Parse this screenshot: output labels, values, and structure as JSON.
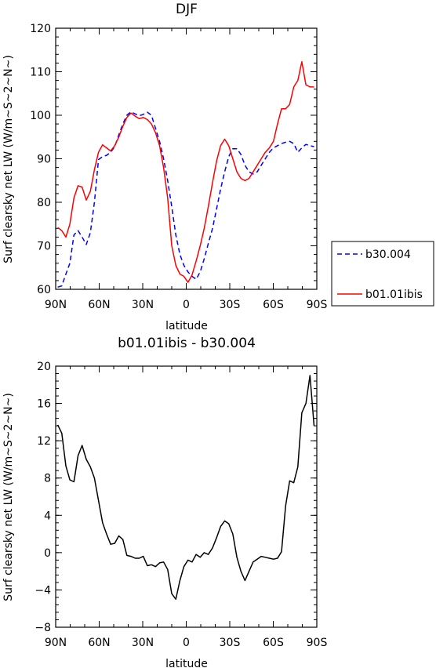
{
  "chart_data": [
    {
      "type": "line",
      "title": "DJF",
      "xlabel": "latitude",
      "ylabel": "Surf clearsky net LW (W/m~S~2~N~)",
      "xlim": [
        90,
        -90
      ],
      "ylim": [
        60,
        120
      ],
      "x_ticks": [
        90,
        60,
        30,
        0,
        -30,
        -60,
        -90
      ],
      "x_tick_labels": [
        "90N",
        "60N",
        "30N",
        "0",
        "30S",
        "60S",
        "90S"
      ],
      "y_ticks": [
        60,
        70,
        80,
        90,
        100,
        110,
        120
      ],
      "y_tick_labels": [
        "60",
        "70",
        "80",
        "90",
        "100",
        "110",
        "120"
      ],
      "legend_position": "outside-right",
      "x": [
        88.6,
        85.8,
        83.0,
        80.2,
        77.4,
        74.6,
        71.8,
        68.9,
        66.1,
        63.3,
        60.5,
        57.7,
        54.9,
        52.1,
        49.3,
        46.5,
        43.7,
        40.9,
        38.1,
        35.2,
        32.4,
        29.6,
        26.8,
        24.0,
        21.2,
        18.4,
        15.6,
        12.8,
        10.0,
        7.2,
        4.4,
        1.6,
        -1.2,
        -4.0,
        -6.8,
        -9.6,
        -12.4,
        -15.2,
        -18.1,
        -20.9,
        -23.7,
        -26.5,
        -29.3,
        -32.1,
        -34.9,
        -37.7,
        -40.5,
        -43.3,
        -46.1,
        -48.9,
        -51.7,
        -54.5,
        -57.3,
        -60.1,
        -62.9,
        -65.7,
        -68.5,
        -71.3,
        -74.1,
        -76.9,
        -79.7,
        -82.5,
        -85.3,
        -88.1
      ],
      "series": [
        {
          "name": "b30.004",
          "color": "#0000ff",
          "dash": "dashed",
          "values": [
            60.5,
            60.8,
            63.5,
            66.0,
            72.5,
            73.5,
            72.0,
            70.3,
            73.0,
            80.0,
            89.8,
            90.5,
            90.8,
            91.5,
            92.8,
            95.5,
            98.0,
            100.0,
            100.8,
            100.3,
            99.9,
            100.2,
            100.7,
            100.0,
            97.0,
            94.0,
            90.0,
            85.0,
            79.0,
            72.5,
            68.0,
            65.5,
            64.0,
            63.0,
            62.3,
            64.0,
            67.0,
            70.5,
            74.0,
            78.5,
            83.0,
            87.0,
            90.5,
            92.3,
            92.3,
            91.0,
            88.5,
            87.0,
            86.5,
            87.0,
            88.5,
            90.0,
            91.5,
            92.5,
            93.0,
            93.5,
            93.8,
            94.0,
            93.5,
            91.5,
            92.5,
            93.3,
            93.0,
            92.8
          ]
        },
        {
          "name": "b01.01ibis",
          "color": "#ff0000",
          "dash": "solid",
          "values": [
            74.2,
            73.5,
            72.0,
            75.0,
            81.0,
            83.8,
            83.5,
            80.5,
            82.5,
            87.5,
            91.5,
            93.2,
            92.5,
            91.8,
            93.0,
            95.0,
            97.5,
            99.5,
            100.5,
            99.8,
            99.2,
            99.5,
            99.0,
            98.0,
            96.0,
            93.0,
            88.0,
            81.0,
            70.0,
            65.5,
            63.5,
            63.0,
            61.6,
            63.3,
            66.5,
            70.0,
            74.0,
            79.0,
            84.5,
            89.5,
            93.0,
            94.5,
            93.0,
            90.0,
            87.0,
            85.5,
            85.0,
            85.5,
            87.0,
            88.5,
            90.0,
            91.5,
            92.5,
            94.0,
            98.0,
            101.5,
            101.5,
            102.5,
            106.5,
            108.0,
            112.3,
            107.0,
            106.5,
            106.5
          ]
        }
      ]
    },
    {
      "type": "line",
      "title": "b01.01ibis - b30.004",
      "xlabel": "latitude",
      "ylabel": "Surf clearsky net LW (W/m~S~2~N~)",
      "xlim": [
        90,
        -90
      ],
      "ylim": [
        -8,
        20
      ],
      "x_ticks": [
        90,
        60,
        30,
        0,
        -30,
        -60,
        -90
      ],
      "x_tick_labels": [
        "90N",
        "60N",
        "30N",
        "0",
        "30S",
        "60S",
        "90S"
      ],
      "y_ticks": [
        -8,
        -4,
        0,
        4,
        8,
        12,
        16,
        20
      ],
      "y_tick_labels": [
        "−8",
        "−4",
        "0",
        "4",
        "8",
        "12",
        "16",
        "20"
      ],
      "x": [
        88.6,
        85.8,
        83.0,
        80.2,
        77.4,
        74.6,
        71.8,
        68.9,
        66.1,
        63.3,
        60.5,
        57.7,
        54.9,
        52.1,
        49.3,
        46.5,
        43.7,
        40.9,
        38.1,
        35.2,
        32.4,
        29.6,
        26.8,
        24.0,
        21.2,
        18.4,
        15.6,
        12.8,
        10.0,
        7.2,
        4.4,
        1.6,
        -1.2,
        -4.0,
        -6.8,
        -9.6,
        -12.4,
        -15.2,
        -18.1,
        -20.9,
        -23.7,
        -26.5,
        -29.3,
        -32.1,
        -34.9,
        -37.7,
        -40.5,
        -43.3,
        -46.1,
        -48.9,
        -51.7,
        -54.5,
        -57.3,
        -60.1,
        -62.9,
        -65.7,
        -68.5,
        -71.3,
        -74.1,
        -76.9,
        -79.7,
        -82.5,
        -85.3,
        -88.1
      ],
      "series": [
        {
          "color": "#000000",
          "dash": "solid",
          "values": [
            13.7,
            12.8,
            9.3,
            7.8,
            7.6,
            10.4,
            11.5,
            10.0,
            9.2,
            8.0,
            5.6,
            3.2,
            2.0,
            0.9,
            1.0,
            1.8,
            1.4,
            -0.3,
            -0.4,
            -0.6,
            -0.6,
            -0.4,
            -1.4,
            -1.3,
            -1.5,
            -1.1,
            -1.0,
            -1.8,
            -4.4,
            -5.0,
            -3.0,
            -1.5,
            -0.8,
            -1.0,
            -0.2,
            -0.5,
            0.0,
            -0.2,
            0.5,
            1.6,
            2.8,
            3.4,
            3.1,
            2.0,
            -0.5,
            -2.0,
            -3.0,
            -2.0,
            -1.0,
            -0.7,
            -0.4,
            -0.5,
            -0.6,
            -0.7,
            -0.6,
            0.1,
            5.0,
            7.7,
            7.5,
            9.2,
            15.0,
            16.0,
            19.0,
            13.6
          ]
        }
      ]
    }
  ]
}
